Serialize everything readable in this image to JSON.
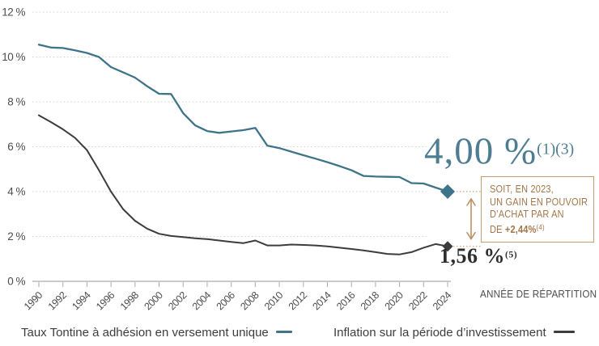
{
  "chart_data": {
    "type": "line",
    "title": "",
    "xlabel": "ANNÉE DE RÉPARTITION",
    "ylabel": "",
    "ylim": [
      0,
      12
    ],
    "ytick_labels": [
      "0 %",
      "2 %",
      "4 %",
      "6 %",
      "8 %",
      "10 %",
      "12 %"
    ],
    "xtick_step": 2,
    "grid": "dotted-horizontal",
    "legend_position": "bottom",
    "x": [
      1990,
      1991,
      1992,
      1993,
      1994,
      1995,
      1996,
      1997,
      1998,
      1999,
      2000,
      2001,
      2002,
      2003,
      2004,
      2005,
      2006,
      2007,
      2008,
      2009,
      2010,
      2011,
      2012,
      2013,
      2014,
      2015,
      2016,
      2017,
      2018,
      2019,
      2020,
      2021,
      2022,
      2023,
      2024
    ],
    "series": [
      {
        "name": "Taux Tontine à adhésion en versement unique",
        "color": "#3E748A",
        "end_marker": "diamond",
        "values": [
          10.55,
          10.42,
          10.4,
          10.3,
          10.18,
          10.0,
          9.55,
          9.32,
          9.08,
          8.7,
          8.36,
          8.35,
          7.5,
          6.95,
          6.7,
          6.62,
          6.68,
          6.74,
          6.84,
          6.05,
          5.94,
          5.78,
          5.62,
          5.47,
          5.31,
          5.14,
          4.95,
          4.7,
          4.67,
          4.66,
          4.65,
          4.38,
          4.36,
          4.18,
          4.0
        ]
      },
      {
        "name": "Inflation sur la période d’investissement",
        "color": "#3C3C3C",
        "end_marker": "diamond",
        "values": [
          7.4,
          7.1,
          6.78,
          6.4,
          5.85,
          4.95,
          4.0,
          3.22,
          2.7,
          2.35,
          2.12,
          2.02,
          1.97,
          1.92,
          1.88,
          1.82,
          1.76,
          1.7,
          1.82,
          1.6,
          1.6,
          1.64,
          1.62,
          1.6,
          1.56,
          1.5,
          1.44,
          1.38,
          1.3,
          1.22,
          1.2,
          1.3,
          1.5,
          1.66,
          1.56
        ]
      }
    ]
  },
  "annotations": {
    "tontine_value": {
      "text": "4,00 %",
      "sup": "(1)(3)",
      "color": "#4E7D92"
    },
    "inflation_value": {
      "text": "1,56 %",
      "sup": "(5)",
      "color": "#2E2E2E"
    },
    "gain_box": {
      "line1": "Soit, en 2023,",
      "line2": "un gain en pouvoir",
      "line3": "d’achat par an",
      "line4_prefix": "de ",
      "line4_bold": "+2,44%",
      "line4_sup": "(4)",
      "border_color": "#C79E73",
      "text_color": "#A3764A"
    },
    "arrow_color": "#BD9166"
  },
  "axis": {
    "x_title": "ANNÉE DE RÉPARTITION",
    "label_color": "#4D4D4D",
    "grid_color": "#D2D2D2",
    "axis_color": "#ABABAB"
  },
  "legend": [
    {
      "label": "Taux Tontine à adhésion en versement unique",
      "color": "#3E748A"
    },
    {
      "label": "Inflation sur la période d’investissement",
      "color": "#3C3C3C"
    }
  ]
}
